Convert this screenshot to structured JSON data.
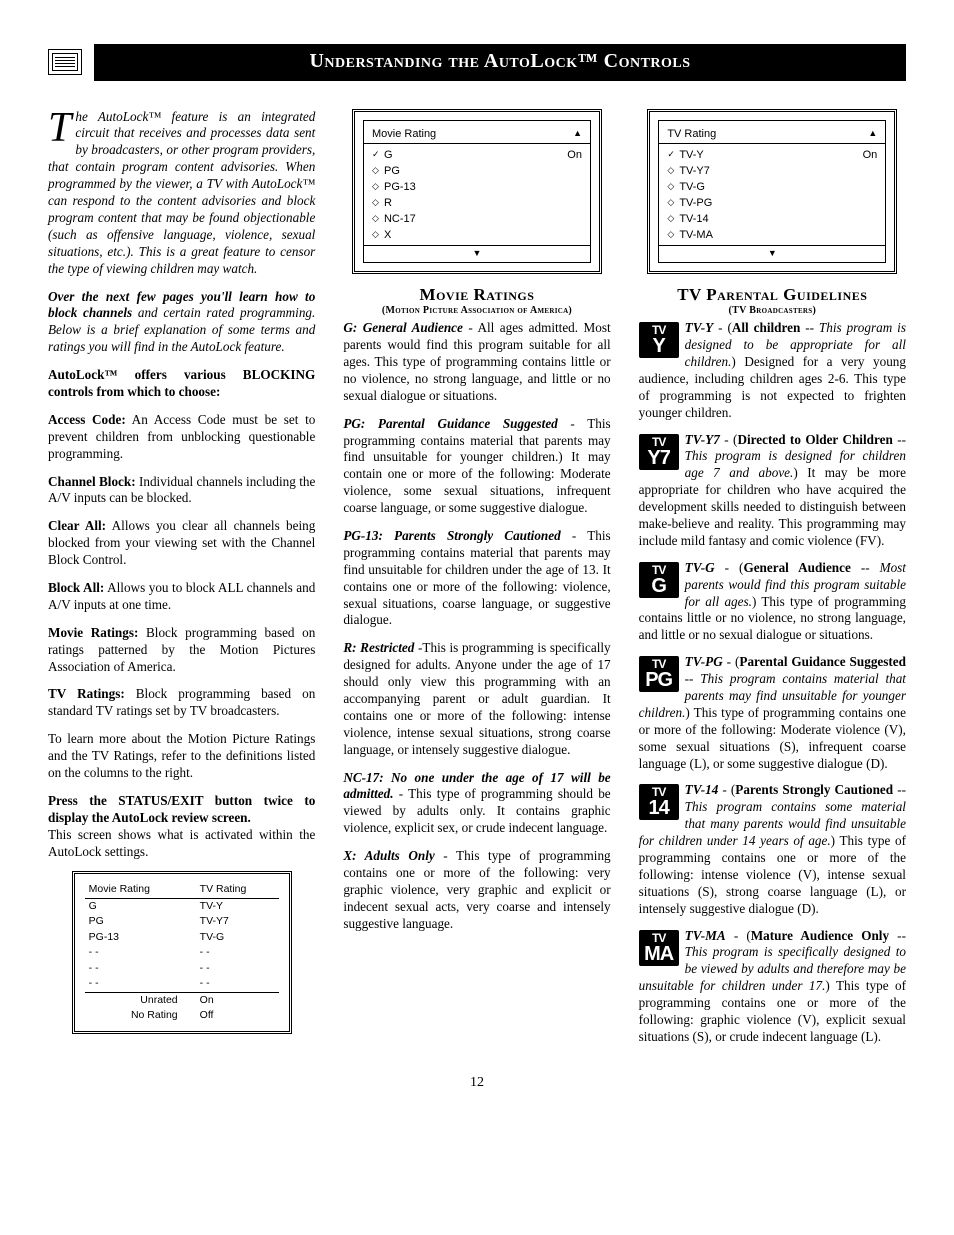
{
  "title_bar": "Understanding the AutoLock™ Controls",
  "page_number": "12",
  "col1": {
    "intro": "he AutoLock™ feature is an integrated circuit that receives and processes data sent by broadcasters, or other program providers, that contain program content advisories. When programmed by the viewer, a TV with AutoLock™ can respond to the content advisories and block program content that may be found objectionable (such as offensive language, violence, sexual situations, etc.). This is a great feature to censor the type of viewing children may watch.",
    "intro_dropcap": "T",
    "p2_bold": "Over the next few pages you'll learn how to block channels",
    "p2_rest": " and certain rated programming. Below is a brief explanation of some terms and ratings you will find in the AutoLock feature.",
    "p3": "AutoLock™ offers various BLOCKING controls from which to choose:",
    "items": [
      {
        "label": "Access Code:",
        "text": " An Access Code must be set to prevent children from unblocking questionable programming."
      },
      {
        "label": "Channel Block:",
        "text": " Individual channels including the A/V inputs can be blocked."
      },
      {
        "label": "Clear All:",
        "text": " Allows you clear all channels being blocked from your viewing set with the Channel Block Control."
      },
      {
        "label": "Block All:",
        "text": " Allows you to block ALL channels and A/V inputs at one time."
      },
      {
        "label": "Movie Ratings:",
        "text": " Block programming based on ratings patterned by the Motion Pictures Association of America."
      },
      {
        "label": "TV Ratings:",
        "text": " Block programming based on standard TV ratings set by TV broadcasters."
      }
    ],
    "p_learn": "To learn more about the Motion Picture Ratings and the TV Ratings, refer to the definitions listed on the columns to the right.",
    "p_press_bold": "Press the STATUS/EXIT button twice to display the AutoLock review screen.",
    "p_press_rest": "This screen shows what is activated within the AutoLock settings.",
    "review": {
      "left_header": "Movie Rating",
      "right_header": "TV Rating",
      "rows": [
        [
          "G",
          "TV-Y"
        ],
        [
          "PG",
          "TV-Y7"
        ],
        [
          "PG-13",
          "TV-G"
        ],
        [
          "- -",
          "- -"
        ],
        [
          "- -",
          "- -"
        ],
        [
          "- -",
          "- -"
        ]
      ],
      "footer": [
        [
          "Unrated",
          "On"
        ],
        [
          "No Rating",
          "Off"
        ]
      ]
    }
  },
  "col2": {
    "screen": {
      "title": "Movie Rating",
      "items": [
        {
          "mark": "✓",
          "name": "G",
          "state": "On"
        },
        {
          "mark": "◇",
          "name": "PG",
          "state": ""
        },
        {
          "mark": "◇",
          "name": "PG-13",
          "state": ""
        },
        {
          "mark": "◇",
          "name": "R",
          "state": ""
        },
        {
          "mark": "◇",
          "name": "NC-17",
          "state": ""
        },
        {
          "mark": "◇",
          "name": "X",
          "state": ""
        }
      ]
    },
    "section_title": "Movie Ratings",
    "section_sub": "(Motion Picture Association of America)",
    "ratings": [
      {
        "label": "G: General Audience",
        "text": " - All ages admitted. Most parents would find this program suitable for all ages. This type of programming contains little or no violence, no strong language, and little or no sexual dialogue or situations."
      },
      {
        "label": "PG: Parental Guidance Suggested",
        "text": " - This programming contains material that parents may find unsuitable for younger children.) It may contain one or more of the following: Moderate violence, some sexual situations, infrequent coarse language, or some suggestive dialogue."
      },
      {
        "label": "PG-13: Parents Strongly Cautioned",
        "text": " - This programming contains material that parents may find unsuitable for children under the age of 13. It contains one or more of the following: violence, sexual situations, coarse language, or suggestive dialogue."
      },
      {
        "label": "R: Restricted",
        "text": " -This is programming is specifically designed for adults. Anyone under the age of 17 should only view this programming with an accompanying parent or adult guardian. It contains one or more of the following: intense violence, intense sexual situations, strong coarse language, or intensely suggestive dialogue."
      },
      {
        "label": "NC-17: No one under the age of 17 will be admitted.",
        "text": " - This type of programming should be viewed by adults only. It contains graphic violence, explicit sex, or crude indecent language."
      },
      {
        "label": "X: Adults Only",
        "text": " - This type of programming contains one or more of the following: very graphic violence, very graphic and explicit or indecent sexual acts, very coarse and intensely suggestive language."
      }
    ]
  },
  "col3": {
    "screen": {
      "title": "TV Rating",
      "items": [
        {
          "mark": "✓",
          "name": "TV-Y",
          "state": "On"
        },
        {
          "mark": "◇",
          "name": "TV-Y7",
          "state": ""
        },
        {
          "mark": "◇",
          "name": "TV-G",
          "state": ""
        },
        {
          "mark": "◇",
          "name": "TV-PG",
          "state": ""
        },
        {
          "mark": "◇",
          "name": "TV-14",
          "state": ""
        },
        {
          "mark": "◇",
          "name": "TV-MA",
          "state": ""
        }
      ]
    },
    "section_title": "TV Parental Guidelines",
    "section_sub": "(TV Broadcasters)",
    "ratings": [
      {
        "icon_top": "TV",
        "icon_bot": "Y",
        "label": "TV-Y",
        "bold": "All children",
        "ital": "This program is designed to be appropriate for all children.",
        "text": ") Designed for a very young audience, including children ages 2-6. This type of programming is not expected to frighten younger children."
      },
      {
        "icon_top": "TV",
        "icon_bot": "Y7",
        "label": "TV-Y7",
        "bold": "Directed to Older Children",
        "ital": "This program is designed for children age 7 and above.",
        "text": ") It may be more appropriate for children who have acquired the development skills needed to distinguish between make-believe and reality. This programming may include mild fantasy and comic violence (FV)."
      },
      {
        "icon_top": "TV",
        "icon_bot": "G",
        "label": "TV-G",
        "bold": "General Audience",
        "ital": "Most parents would find this program suitable for all ages.",
        "text": ") This type of programming contains little or no violence, no strong language, and little or no sexual dialogue or situations."
      },
      {
        "icon_top": "TV",
        "icon_bot": "PG",
        "label": "TV-PG",
        "bold": "Parental Guidance Suggested",
        "ital": "This program contains material that parents may find unsuitable for younger children.",
        "text": ") This type of programming contains one or more of the following: Moderate violence (V), some sexual situations (S), infrequent coarse language (L), or some suggestive dialogue (D)."
      },
      {
        "icon_top": "TV",
        "icon_bot": "14",
        "label": "TV-14",
        "bold": "Parents Strongly Cautioned",
        "ital": "This program contains some material that many parents would find unsuitable for children under 14 years of age.",
        "text": ") This type of programming contains one or more of the following: intense violence (V), intense sexual situations (S), strong coarse language (L), or intensely suggestive dialogue (D)."
      },
      {
        "icon_top": "TV",
        "icon_bot": "MA",
        "label": "TV-MA",
        "bold": "Mature Audience Only",
        "ital": "This program is specifically designed to be viewed by adults and therefore may be unsuitable for children under 17.",
        "text": ") This type of programming contains one or more of the following: graphic violence (V), explicit sexual situations (S), or crude indecent language (L)."
      }
    ]
  }
}
